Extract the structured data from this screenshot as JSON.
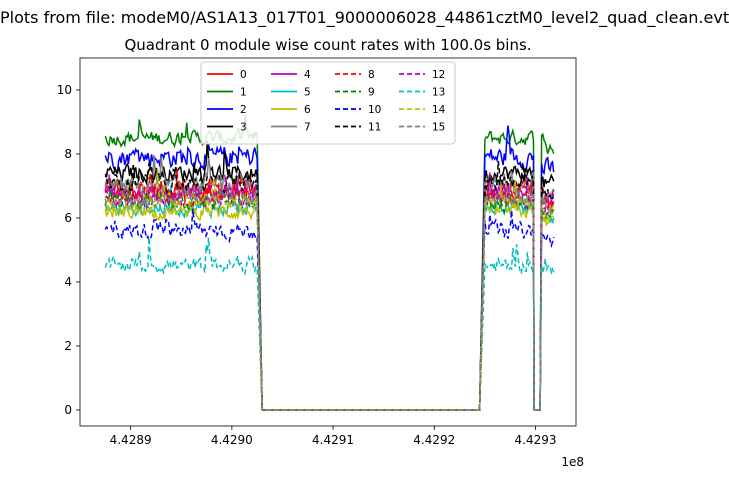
{
  "chart_data": {
    "type": "line",
    "suptitle": "Plots from file: modeM0/AS1A13_017T01_9000006028_44861cztM0_level2_quad_clean.evt",
    "title": "Quadrant 0 module wise count rates with 100.0s bins.",
    "xlabel": "",
    "ylabel": "",
    "x_offset_label": "1e8",
    "xlim": [
      4.42885,
      4.42934
    ],
    "ylim": [
      -0.5,
      11
    ],
    "xticks": [
      4.4289,
      4.429,
      4.4291,
      4.4292,
      4.4293
    ],
    "xtick_labels": [
      "4.4289",
      "4.4290",
      "4.4291",
      "4.4292",
      "4.4293"
    ],
    "yticks": [
      0,
      2,
      4,
      6,
      8,
      10
    ],
    "ytick_labels": [
      "0",
      "2",
      "4",
      "6",
      "8",
      "10"
    ],
    "segments": [
      {
        "x_start": 4.428875,
        "x_end": 4.429025,
        "active": true
      },
      {
        "x_start": 4.42903,
        "x_end": 4.429245,
        "active": false
      },
      {
        "x_start": 4.42925,
        "x_end": 4.429298,
        "active": true
      },
      {
        "x_start": 4.4292985,
        "x_end": 4.429305,
        "active": false
      },
      {
        "x_start": 4.429306,
        "x_end": 4.429318,
        "active": true
      }
    ],
    "series": [
      {
        "name": "0",
        "color": "#ff0000",
        "dash": "solid",
        "mean": 6.9,
        "noise": 0.5
      },
      {
        "name": "1",
        "color": "#008000",
        "dash": "solid",
        "mean": 8.5,
        "noise": 0.35
      },
      {
        "name": "2",
        "color": "#0000ff",
        "dash": "solid",
        "mean": 7.9,
        "noise": 0.5
      },
      {
        "name": "3",
        "color": "#000000",
        "dash": "solid",
        "mean": 7.4,
        "noise": 0.4
      },
      {
        "name": "4",
        "color": "#bf00bf",
        "dash": "solid",
        "mean": 6.8,
        "noise": 0.4
      },
      {
        "name": "5",
        "color": "#00bfbf",
        "dash": "solid",
        "mean": 6.3,
        "noise": 0.35
      },
      {
        "name": "6",
        "color": "#bfbf00",
        "dash": "solid",
        "mean": 6.2,
        "noise": 0.35
      },
      {
        "name": "7",
        "color": "#808080",
        "dash": "solid",
        "mean": 7.0,
        "noise": 0.45
      },
      {
        "name": "8",
        "color": "#ff0000",
        "dash": "dashed",
        "mean": 6.7,
        "noise": 0.4
      },
      {
        "name": "9",
        "color": "#008000",
        "dash": "dashed",
        "mean": 6.5,
        "noise": 0.4
      },
      {
        "name": "10",
        "color": "#0000ff",
        "dash": "dashed",
        "mean": 5.6,
        "noise": 0.4
      },
      {
        "name": "11",
        "color": "#000000",
        "dash": "dashed",
        "mean": 7.1,
        "noise": 0.4
      },
      {
        "name": "12",
        "color": "#bf00bf",
        "dash": "dashed",
        "mean": 6.6,
        "noise": 0.4
      },
      {
        "name": "13",
        "color": "#00bfbf",
        "dash": "dashed",
        "mean": 4.5,
        "noise": 0.35
      },
      {
        "name": "14",
        "color": "#bfbf00",
        "dash": "dashed",
        "mean": 6.5,
        "noise": 0.4
      },
      {
        "name": "15",
        "color": "#808080",
        "dash": "dashed",
        "mean": 6.6,
        "noise": 0.4
      }
    ],
    "legend_placement": "upper-center",
    "legend_columns": 4,
    "grid": false
  }
}
